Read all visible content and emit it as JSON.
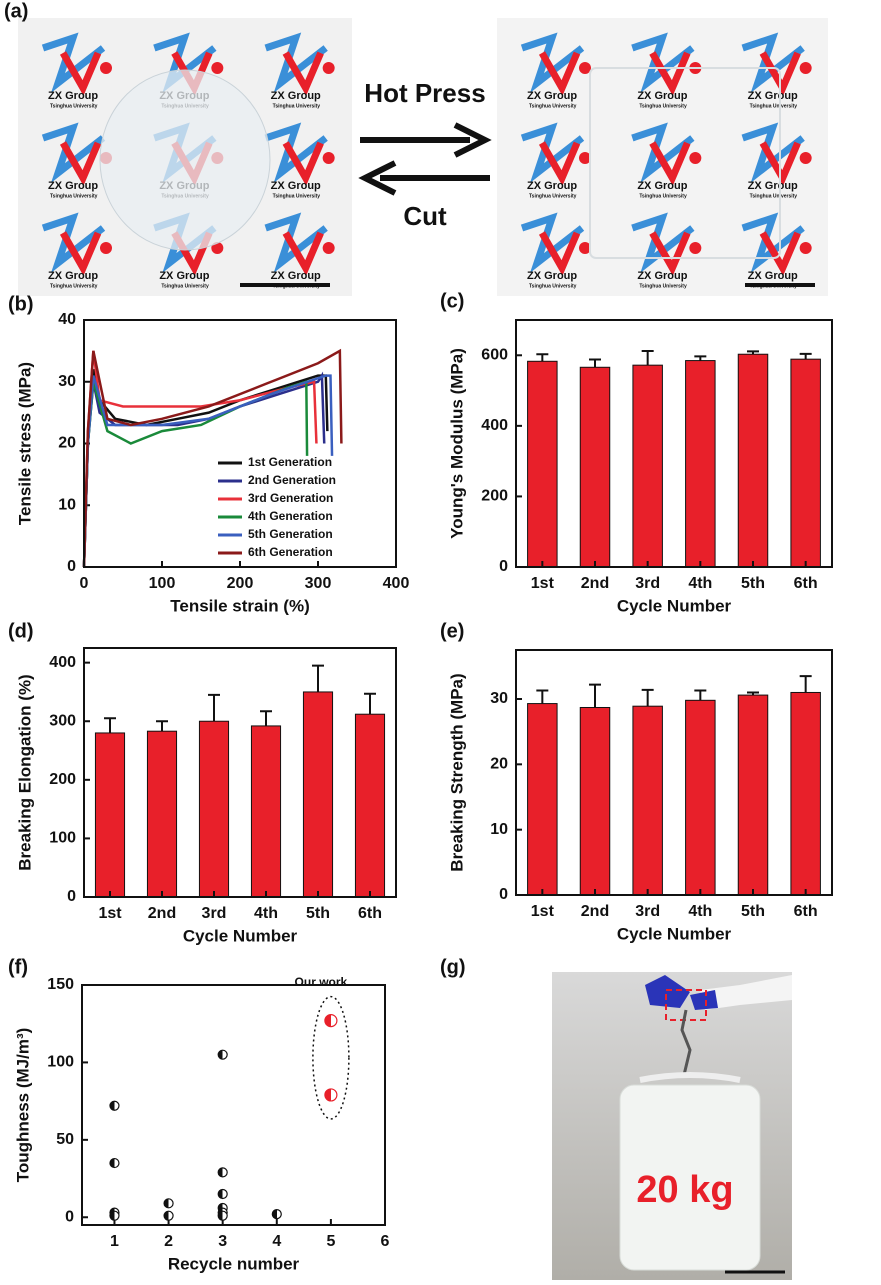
{
  "figure": {
    "panel_labels": [
      "(a)",
      "(b)",
      "(c)",
      "(d)",
      "(e)",
      "(f)",
      "(g)"
    ]
  },
  "photo_a": {
    "hot_press": "Hot Press",
    "cut": "Cut",
    "logo_text": "ZX Group",
    "logo_subtext": "Tsinghua University"
  },
  "photo_g": {
    "weight": "20 kg"
  },
  "chart_data": [
    {
      "type": "line",
      "xlabel": "Tensile strain (%)",
      "ylabel": "Tensile stress (MPa)",
      "xlim": [
        0,
        400
      ],
      "xticks": [
        0,
        100,
        200,
        300,
        400
      ],
      "ylim": [
        0,
        40
      ],
      "yticks": [
        0,
        10,
        20,
        30,
        40
      ],
      "legend": "lower right",
      "series": [
        {
          "name": "1st Generation",
          "color": "#111111",
          "x": [
            0,
            5,
            12,
            20,
            40,
            80,
            120,
            160,
            200,
            250,
            300,
            310,
            312
          ],
          "values": [
            0,
            20,
            32,
            27,
            24,
            23,
            24,
            25,
            27,
            29,
            31,
            31,
            22
          ]
        },
        {
          "name": "2nd Generation",
          "color": "#2b2f8c",
          "x": [
            0,
            5,
            12,
            20,
            40,
            80,
            120,
            160,
            200,
            250,
            300,
            305,
            308
          ],
          "values": [
            0,
            20,
            30,
            25,
            23,
            23,
            23,
            24,
            26,
            28,
            30,
            31,
            20
          ]
        },
        {
          "name": "3rd Generation",
          "color": "#e8303a",
          "x": [
            0,
            5,
            12,
            20,
            50,
            100,
            150,
            200,
            260,
            295,
            298
          ],
          "values": [
            0,
            22,
            35,
            27,
            26,
            26,
            26,
            27,
            29,
            30,
            20
          ]
        },
        {
          "name": "4th Generation",
          "color": "#1a8a3a",
          "x": [
            0,
            5,
            12,
            30,
            60,
            100,
            150,
            200,
            260,
            285,
            286
          ],
          "values": [
            0,
            20,
            30,
            22,
            20,
            22,
            23,
            26,
            29,
            30,
            18
          ]
        },
        {
          "name": "5th Generation",
          "color": "#3a5fbf",
          "x": [
            0,
            5,
            12,
            30,
            100,
            160,
            240,
            310,
            316,
            318
          ],
          "values": [
            0,
            20,
            31,
            23,
            23,
            24,
            28,
            31,
            31,
            18
          ]
        },
        {
          "name": "6th Generation",
          "color": "#8b1a1a",
          "x": [
            0,
            5,
            12,
            30,
            60,
            100,
            160,
            240,
            300,
            328,
            330
          ],
          "values": [
            0,
            22,
            35,
            24,
            23,
            24,
            26,
            30,
            33,
            35,
            20
          ]
        }
      ]
    },
    {
      "type": "bar",
      "xlabel": "Cycle Number",
      "ylabel": "Young's Modulus (MPa)",
      "color": "#e8202a",
      "categories": [
        "1st",
        "2nd",
        "3rd",
        "4th",
        "5th",
        "6th"
      ],
      "values": [
        583,
        566,
        572,
        585,
        603,
        589
      ],
      "errors": [
        20,
        22,
        40,
        12,
        8,
        15
      ],
      "ylim": [
        0,
        700
      ],
      "yticks": [
        0,
        200,
        400,
        600
      ]
    },
    {
      "type": "bar",
      "xlabel": "Cycle Number",
      "ylabel": "Breaking Elongation (%)",
      "color": "#e8202a",
      "categories": [
        "1st",
        "2nd",
        "3rd",
        "4th",
        "5th",
        "6th"
      ],
      "values": [
        280,
        283,
        300,
        292,
        350,
        312
      ],
      "errors": [
        25,
        17,
        45,
        25,
        45,
        35
      ],
      "ylim": [
        0,
        425
      ],
      "yticks": [
        0,
        100,
        200,
        300,
        400
      ]
    },
    {
      "type": "bar",
      "xlabel": "Cycle Number",
      "ylabel": "Breaking Strength (MPa)",
      "color": "#e8202a",
      "categories": [
        "1st",
        "2nd",
        "3rd",
        "4th",
        "5th",
        "6th"
      ],
      "values": [
        29.3,
        28.7,
        28.9,
        29.8,
        30.6,
        31.0
      ],
      "errors": [
        2,
        3.5,
        2.5,
        1.5,
        0.4,
        2.5
      ],
      "ylim": [
        0,
        37.5
      ],
      "yticks": [
        0,
        10,
        20,
        30
      ]
    },
    {
      "type": "scatter",
      "xlabel": "Recycle number",
      "ylabel": "Toughness (MJ/m³)",
      "annotation": "Our work",
      "xlim": [
        0.4,
        6
      ],
      "xticks": [
        1,
        2,
        3,
        4,
        5,
        6
      ],
      "ylim": [
        -5,
        150
      ],
      "yticks": [
        0,
        50,
        100,
        150
      ],
      "series": [
        {
          "color": "#111111",
          "x": [
            1,
            1,
            1,
            1,
            2,
            2,
            3,
            3,
            3,
            3,
            3,
            3,
            4
          ],
          "values": [
            72,
            35,
            3,
            1,
            9,
            1,
            105,
            29,
            15,
            6,
            3,
            1,
            2
          ]
        },
        {
          "color": "#e8202a",
          "x": [
            5,
            5
          ],
          "values": [
            127,
            79
          ]
        }
      ]
    }
  ]
}
